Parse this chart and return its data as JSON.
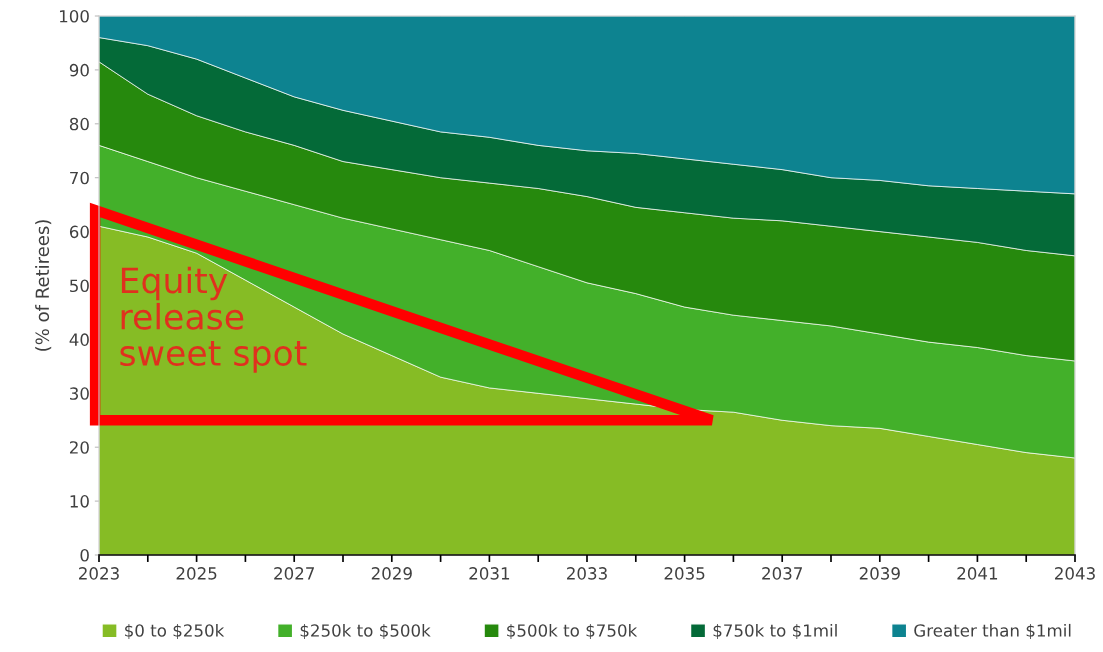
{
  "chart_data": {
    "type": "area",
    "stacked": true,
    "ylabel": "(% of Retirees)",
    "x": [
      2023,
      2024,
      2025,
      2026,
      2027,
      2028,
      2029,
      2030,
      2031,
      2032,
      2033,
      2034,
      2035,
      2036,
      2037,
      2038,
      2039,
      2040,
      2041,
      2042,
      2043
    ],
    "series": [
      {
        "name": "$0 to $250k",
        "color": "#86bc25",
        "values": [
          61,
          59,
          56,
          51,
          46,
          41,
          37,
          33,
          31,
          30,
          29,
          28,
          27,
          26.5,
          25,
          24,
          23.5,
          22,
          20.5,
          19,
          18
        ]
      },
      {
        "name": "$250k to $500k",
        "color": "#43b02a",
        "values": [
          15,
          14,
          14,
          16.5,
          19,
          21.5,
          23.5,
          25.5,
          25.5,
          23.5,
          21.5,
          20.5,
          19,
          18,
          18.5,
          18.5,
          17.5,
          17.5,
          18,
          18,
          18
        ]
      },
      {
        "name": "$500k to $750k",
        "color": "#26890d",
        "values": [
          15.5,
          12.5,
          11.5,
          11,
          11,
          10.5,
          11,
          11.5,
          12.5,
          14.5,
          16,
          16,
          17.5,
          18,
          18.5,
          18.5,
          19,
          19.5,
          19.5,
          19.5,
          19.5
        ]
      },
      {
        "name": "$750k to $1mil",
        "color": "#046a38",
        "values": [
          4.5,
          9,
          10.5,
          10,
          9,
          9.5,
          9,
          8.5,
          8.5,
          8,
          8.5,
          10,
          10,
          10,
          9.5,
          9,
          9.5,
          9.5,
          10,
          11,
          11.5
        ]
      },
      {
        "name": "Greater than $1mil",
        "color": "#0d8390",
        "values": [
          4,
          5.5,
          8,
          11.5,
          15,
          17.5,
          19.5,
          21.5,
          22.5,
          24,
          25,
          25.5,
          26.5,
          27.5,
          28.5,
          30,
          30.5,
          31.5,
          32,
          32.5,
          33
        ]
      }
    ],
    "xlim": [
      2023,
      2043
    ],
    "xticks": [
      2023,
      {
        "value": 2024,
        "label": null
      },
      2025,
      {
        "value": 2026,
        "label": null
      },
      2027,
      {
        "value": 2028,
        "label": null
      },
      2029,
      {
        "value": 2030,
        "label": null
      },
      2031,
      {
        "value": 2032,
        "label": null
      },
      2033,
      {
        "value": 2034,
        "label": null
      },
      2035,
      {
        "value": 2036,
        "label": null
      },
      2037,
      {
        "value": 2038,
        "label": null
      },
      2039,
      {
        "value": 2040,
        "label": null
      },
      2041,
      {
        "value": 2042,
        "label": null
      },
      2043
    ],
    "ylim": [
      0,
      100
    ],
    "yticks": [
      0,
      10,
      20,
      30,
      40,
      50,
      60,
      70,
      80,
      90,
      100
    ],
    "legend": "bottom",
    "annotations": [
      "Equity\nrelease\nsweet spot"
    ]
  }
}
